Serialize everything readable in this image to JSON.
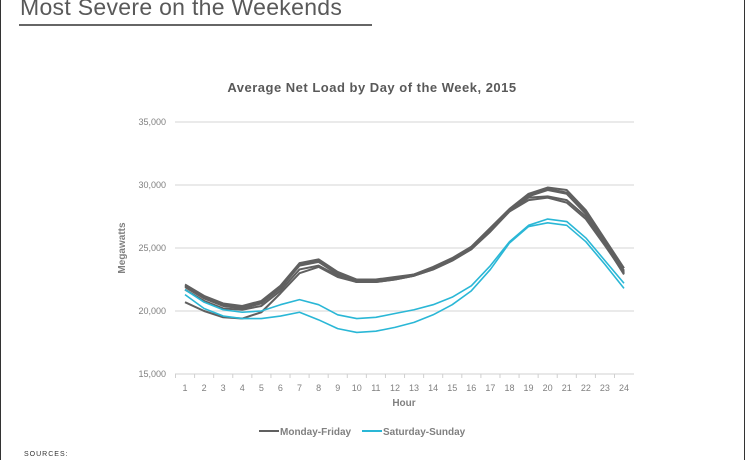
{
  "page": {
    "title": "Most Severe on the Weekends",
    "sources_label": "SOURCES:"
  },
  "chart_data": {
    "type": "line",
    "title": "Average Net Load by Day of the Week, 2015",
    "xlabel": "Hour",
    "ylabel": "Megawatts",
    "ylim": [
      15000,
      35000
    ],
    "yticks": [
      15000,
      20000,
      25000,
      30000,
      35000
    ],
    "ytick_labels": [
      "15,000",
      "20,000",
      "25,000",
      "30,000",
      "35,000"
    ],
    "x": [
      1,
      2,
      3,
      4,
      5,
      6,
      7,
      8,
      9,
      10,
      11,
      12,
      13,
      14,
      15,
      16,
      17,
      18,
      19,
      20,
      21,
      22,
      23,
      24
    ],
    "grid": true,
    "legend_position": "bottom",
    "legend": [
      {
        "name": "Monday-Friday",
        "color": "#606060"
      },
      {
        "name": "Saturday-Sunday",
        "color": "#2ab7d6"
      }
    ],
    "series": [
      {
        "name": "Monday-Friday",
        "group": 0,
        "values": [
          22100,
          21200,
          20600,
          20400,
          20800,
          22000,
          23800,
          24100,
          23100,
          22500,
          22500,
          22700,
          22900,
          23500,
          24200,
          25100,
          26600,
          28100,
          29300,
          29800,
          29600,
          28000,
          25700,
          23400
        ]
      },
      {
        "name": "Monday-Friday",
        "group": 0,
        "values": [
          22000,
          21100,
          20500,
          20300,
          20700,
          21900,
          23700,
          24000,
          23000,
          22400,
          22400,
          22600,
          22900,
          23400,
          24100,
          25000,
          26500,
          28000,
          29200,
          29700,
          29400,
          27800,
          25500,
          23200
        ]
      },
      {
        "name": "Monday-Friday",
        "group": 0,
        "values": [
          21900,
          21000,
          20400,
          20200,
          20600,
          21800,
          23600,
          23900,
          22900,
          22300,
          22400,
          22600,
          22800,
          23400,
          24100,
          25000,
          26500,
          28000,
          29100,
          29600,
          29300,
          27700,
          25400,
          23100
        ]
      },
      {
        "name": "Monday-Friday",
        "group": 0,
        "values": [
          21700,
          20800,
          20200,
          20100,
          20400,
          21600,
          23300,
          23600,
          22800,
          22300,
          22300,
          22500,
          22800,
          23300,
          24000,
          24900,
          26400,
          27900,
          29000,
          29100,
          28800,
          27500,
          25300,
          22900
        ]
      },
      {
        "name": "Monday-Friday",
        "group": 0,
        "values": [
          20700,
          20000,
          19500,
          19400,
          19900,
          21400,
          23000,
          23500,
          22700,
          22300,
          22300,
          22500,
          22800,
          23300,
          24000,
          24900,
          26300,
          27900,
          28800,
          29000,
          28600,
          27300,
          25200,
          23000
        ]
      },
      {
        "name": "Saturday-Sunday",
        "group": 1,
        "values": [
          21700,
          20700,
          20100,
          19900,
          20000,
          20500,
          20900,
          20500,
          19700,
          19400,
          19500,
          19800,
          20100,
          20500,
          21100,
          22000,
          23600,
          25500,
          26800,
          27300,
          27100,
          25800,
          24000,
          22200
        ]
      },
      {
        "name": "Saturday-Sunday",
        "group": 1,
        "values": [
          21300,
          20200,
          19600,
          19400,
          19400,
          19600,
          19900,
          19300,
          18600,
          18300,
          18400,
          18700,
          19100,
          19700,
          20500,
          21600,
          23300,
          25400,
          26700,
          27000,
          26800,
          25500,
          23700,
          21800
        ]
      }
    ]
  }
}
